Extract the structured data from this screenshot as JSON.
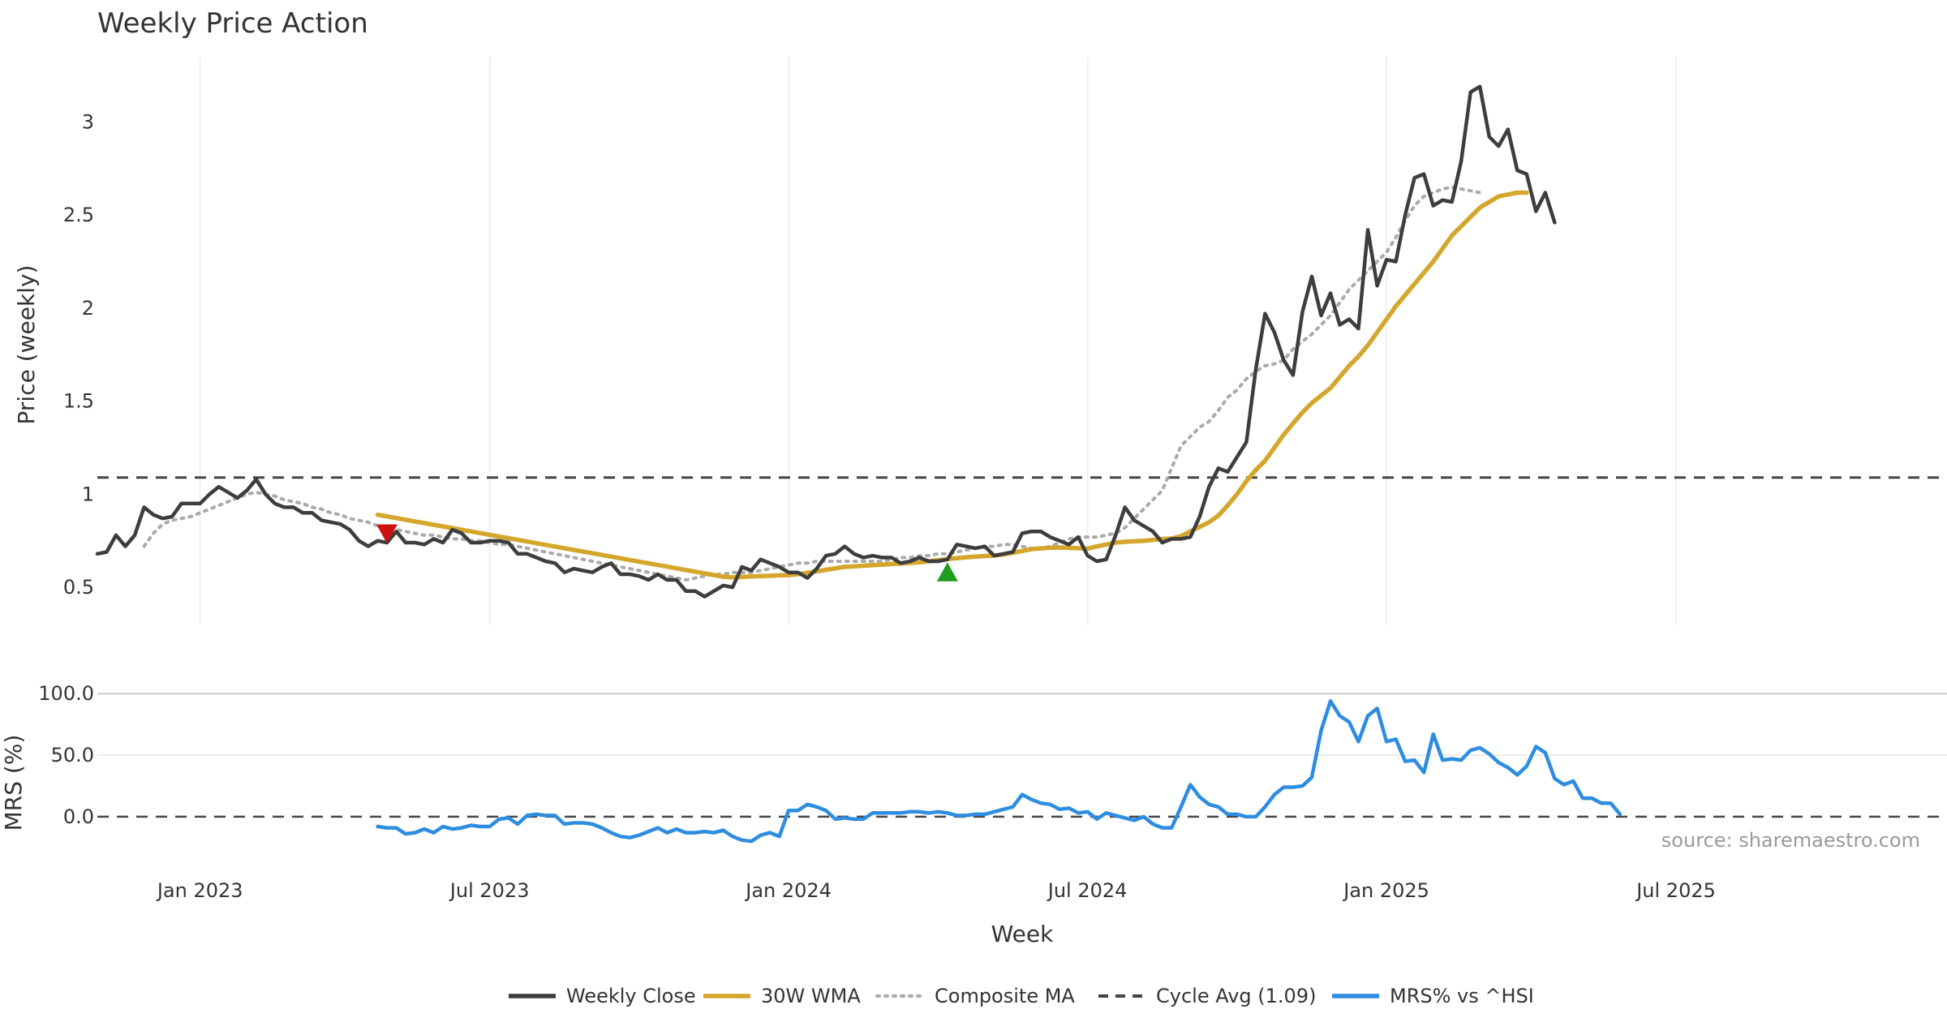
{
  "chart_data": [
    {
      "type": "line",
      "title": "Weekly Price Action",
      "ylabel": "Price (weekly)",
      "xlabel": "",
      "x_range_weeks": [
        -58,
        140
      ],
      "ylim": [
        0.3,
        3.35
      ],
      "yticks": [
        0.5,
        1,
        1.5,
        2,
        2.5,
        3
      ],
      "ytick_labels": [
        "0.5",
        "1",
        "1.5",
        "2",
        "2.5",
        "3"
      ],
      "xgrid_weeks": [
        -47,
        -16,
        16,
        48,
        80,
        111
      ],
      "series": [
        {
          "name": "Weekly Close",
          "color": "#3d3d3d",
          "start_week": -58,
          "values": [
            0.68,
            0.69,
            0.78,
            0.72,
            0.78,
            0.93,
            0.89,
            0.87,
            0.88,
            0.95,
            0.95,
            0.95,
            1.0,
            1.04,
            1.01,
            0.98,
            1.02,
            1.08,
            1.0,
            0.95,
            0.93,
            0.93,
            0.9,
            0.9,
            0.86,
            0.85,
            0.84,
            0.81,
            0.75,
            0.72,
            0.75,
            0.74,
            0.8,
            0.74,
            0.74,
            0.73,
            0.76,
            0.74,
            0.81,
            0.79,
            0.74,
            0.74,
            0.75,
            0.75,
            0.74,
            0.68,
            0.68,
            0.66,
            0.64,
            0.63,
            0.58,
            0.6,
            0.59,
            0.58,
            0.61,
            0.63,
            0.57,
            0.57,
            0.56,
            0.54,
            0.57,
            0.54,
            0.54,
            0.48,
            0.48,
            0.45,
            0.48,
            0.51,
            0.5,
            0.61,
            0.59,
            0.65,
            0.63,
            0.61,
            0.58,
            0.58,
            0.55,
            0.6,
            0.67,
            0.68,
            0.72,
            0.68,
            0.66,
            0.67,
            0.66,
            0.66,
            0.63,
            0.64,
            0.66,
            0.64,
            0.64,
            0.65,
            0.73,
            0.72,
            0.71,
            0.72,
            0.67,
            0.68,
            0.69,
            0.79,
            0.8,
            0.8,
            0.77,
            0.75,
            0.73,
            0.77,
            0.67,
            0.64,
            0.65,
            0.78,
            0.93,
            0.86,
            0.83,
            0.8,
            0.74,
            0.76,
            0.76,
            0.77,
            0.88,
            1.04,
            1.14,
            1.12,
            1.2,
            1.28,
            1.67,
            1.97,
            1.87,
            1.72,
            1.64,
            1.98,
            2.17,
            1.96,
            2.08,
            1.91,
            1.94,
            1.89,
            2.42,
            2.12,
            2.26,
            2.25,
            2.5,
            2.7,
            2.72,
            2.55,
            2.58,
            2.57,
            2.79,
            3.16,
            3.19,
            2.92,
            2.87,
            2.96,
            2.74,
            2.72,
            2.52,
            2.62,
            2.46
          ]
        },
        {
          "name": "30W WMA",
          "color": "#d4a72c",
          "start_week": -28,
          "values": [
            0.89,
            0.881,
            0.872,
            0.863,
            0.854,
            0.845,
            0.836,
            0.827,
            0.818,
            0.809,
            0.8,
            0.791,
            0.782,
            0.773,
            0.764,
            0.755,
            0.746,
            0.737,
            0.728,
            0.719,
            0.71,
            0.701,
            0.692,
            0.683,
            0.674,
            0.665,
            0.656,
            0.647,
            0.638,
            0.629,
            0.62,
            0.611,
            0.602,
            0.593,
            0.584,
            0.575,
            0.566,
            0.557,
            0.554,
            0.556,
            0.558,
            0.56,
            0.562,
            0.564,
            0.566,
            0.57,
            0.578,
            0.586,
            0.594,
            0.602,
            0.61,
            0.613,
            0.616,
            0.619,
            0.622,
            0.625,
            0.628,
            0.631,
            0.634,
            0.64,
            0.646,
            0.652,
            0.657,
            0.661,
            0.665,
            0.668,
            0.671,
            0.676,
            0.685,
            0.695,
            0.705,
            0.709,
            0.712,
            0.714,
            0.712,
            0.71,
            0.708,
            0.72,
            0.73,
            0.74,
            0.745,
            0.748,
            0.75,
            0.755,
            0.76,
            0.762,
            0.775,
            0.8,
            0.825,
            0.85,
            0.885,
            0.94,
            1.0,
            1.07,
            1.13,
            1.18,
            1.25,
            1.32,
            1.38,
            1.44,
            1.49,
            1.53,
            1.57,
            1.63,
            1.69,
            1.74,
            1.8,
            1.87,
            1.94,
            2.01,
            2.07,
            2.13,
            2.19,
            2.25,
            2.32,
            2.39,
            2.44,
            2.49,
            2.54,
            2.57,
            2.6,
            2.61,
            2.62,
            2.62
          ]
        },
        {
          "name": "Composite MA",
          "color": "#aaaaaa",
          "start_week": -53,
          "values": [
            0.72,
            0.79,
            0.84,
            0.86,
            0.87,
            0.88,
            0.9,
            0.92,
            0.94,
            0.96,
            0.98,
            1.0,
            1.01,
            1.0,
            0.99,
            0.97,
            0.96,
            0.95,
            0.93,
            0.92,
            0.9,
            0.89,
            0.87,
            0.86,
            0.85,
            0.83,
            0.82,
            0.81,
            0.8,
            0.79,
            0.78,
            0.78,
            0.77,
            0.76,
            0.76,
            0.75,
            0.75,
            0.74,
            0.73,
            0.73,
            0.72,
            0.71,
            0.7,
            0.69,
            0.68,
            0.67,
            0.66,
            0.65,
            0.64,
            0.63,
            0.62,
            0.61,
            0.6,
            0.59,
            0.58,
            0.57,
            0.56,
            0.55,
            0.54,
            0.55,
            0.56,
            0.57,
            0.57,
            0.58,
            0.58,
            0.58,
            0.59,
            0.6,
            0.61,
            0.62,
            0.63,
            0.63,
            0.64,
            0.64,
            0.64,
            0.64,
            0.64,
            0.64,
            0.64,
            0.64,
            0.65,
            0.66,
            0.66,
            0.67,
            0.67,
            0.68,
            0.68,
            0.69,
            0.7,
            0.71,
            0.72,
            0.72,
            0.73,
            0.73,
            0.72,
            0.71,
            0.71,
            0.72,
            0.74,
            0.76,
            0.77,
            0.77,
            0.77,
            0.78,
            0.79,
            0.82,
            0.87,
            0.92,
            0.97,
            1.02,
            1.14,
            1.26,
            1.31,
            1.36,
            1.39,
            1.45,
            1.52,
            1.56,
            1.62,
            1.66,
            1.69,
            1.7,
            1.72,
            1.78,
            1.82,
            1.86,
            1.91,
            1.96,
            2.03,
            2.1,
            2.15,
            2.2,
            2.25,
            2.3,
            2.38,
            2.47,
            2.55,
            2.6,
            2.62,
            2.64,
            2.65,
            2.64,
            2.63,
            2.62
          ]
        }
      ],
      "reference_line": {
        "name": "Cycle Avg (1.09)",
        "value": 1.09,
        "color": "#444444"
      },
      "markers": [
        {
          "type": "sell",
          "week": -27,
          "value": 0.79,
          "color": "#cc1111"
        },
        {
          "type": "buy",
          "week": 33,
          "value": 0.58,
          "color": "#1f9e1f"
        }
      ]
    },
    {
      "type": "line",
      "title": "",
      "ylabel": "MRS (%)",
      "xlabel": "Week",
      "ylim": [
        -35,
        110
      ],
      "yticks": [
        0,
        50,
        100
      ],
      "ytick_labels": [
        "0.0",
        "50.0",
        "100.0"
      ],
      "xticks": [
        -47,
        -16,
        16,
        48,
        80,
        111
      ],
      "xtick_labels": [
        "Jan 2023",
        "Jul 2023",
        "Jan 2024",
        "Jul 2024",
        "Jan 2025",
        "Jul 2025"
      ],
      "series": [
        {
          "name": "MRS% vs ^HSI",
          "color": "#2e8de0",
          "start_week": -28,
          "values": [
            -8,
            -9,
            -9,
            -14,
            -13,
            -10,
            -13,
            -8,
            -10,
            -9,
            -7,
            -8,
            -8,
            -2,
            -1,
            -6,
            1,
            2,
            1,
            1,
            -6,
            -5,
            -5,
            -6,
            -9,
            -13,
            -16,
            -17,
            -15,
            -12,
            -9,
            -13,
            -10,
            -13,
            -13,
            -12,
            -13,
            -11,
            -16,
            -19,
            -20,
            -15,
            -13,
            -16,
            5,
            5,
            10,
            8,
            5,
            -2,
            -1,
            -2,
            -2,
            3,
            3,
            3,
            3,
            4,
            4,
            3,
            4,
            3,
            1,
            1,
            2,
            2,
            4,
            6,
            8,
            18,
            14,
            11,
            10,
            6,
            7,
            3,
            4,
            -2,
            3,
            1,
            -1,
            -3,
            0,
            -6,
            -9,
            -9,
            8,
            26,
            16,
            10,
            8,
            2,
            2,
            0,
            0,
            8,
            18,
            24,
            24,
            25,
            32,
            70,
            94,
            82,
            77,
            61,
            82,
            88,
            61,
            63,
            45,
            46,
            36,
            67,
            46,
            47,
            46,
            54,
            56,
            51,
            44,
            40,
            34,
            41,
            57,
            52,
            31,
            26,
            29,
            15,
            15,
            11,
            11,
            2
          ]
        }
      ],
      "reference_line": {
        "value": 0,
        "color": "#444444"
      },
      "annotation": "source: sharemaestro.com"
    }
  ],
  "legend": [
    {
      "label": "Weekly Close",
      "color": "#3d3d3d",
      "style": "solid"
    },
    {
      "label": "30W WMA",
      "color": "#d4a72c",
      "style": "solid"
    },
    {
      "label": "Composite MA",
      "color": "#aaaaaa",
      "style": "dotted"
    },
    {
      "label": "Cycle Avg (1.09)",
      "color": "#444444",
      "style": "dashed"
    },
    {
      "label": "MRS% vs ^HSI",
      "color": "#2e8de0",
      "style": "solid"
    }
  ]
}
